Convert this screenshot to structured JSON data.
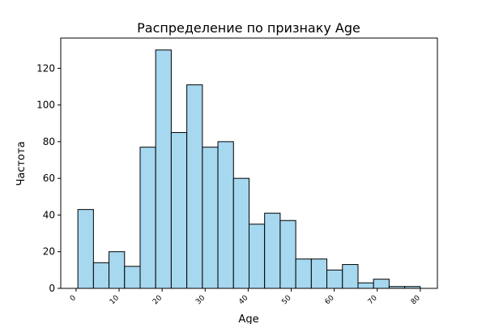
{
  "chart_data": {
    "type": "histogram",
    "title": "Распределение по признаку Age",
    "x_label": "Age",
    "y_label": "Частота",
    "bins": [
      0.42,
      4.04,
      7.65,
      11.27,
      14.89,
      18.5,
      22.12,
      25.74,
      29.36,
      32.97,
      36.59,
      40.21,
      43.82,
      47.44,
      51.06,
      54.68,
      58.29,
      61.91,
      65.53,
      69.14,
      72.76,
      76.38,
      80
    ],
    "values": [
      43,
      14,
      20,
      12,
      77,
      130,
      85,
      111,
      77,
      80,
      60,
      35,
      41,
      37,
      16,
      16,
      10,
      13,
      3,
      5,
      1,
      1
    ],
    "color": "#a6d8ef",
    "edgecolor": "#000000",
    "xlim": [
      -3.56,
      83.98
    ],
    "xticks": [
      0,
      10,
      20,
      30,
      40,
      50,
      60,
      70,
      80
    ],
    "ylim": [
      0,
      136.5
    ],
    "yticks": [
      0,
      20,
      40,
      60,
      80,
      100,
      120
    ]
  }
}
